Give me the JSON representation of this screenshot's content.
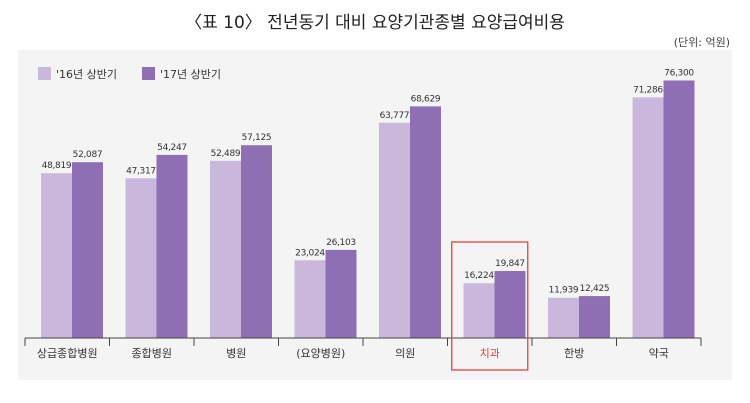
{
  "title": "〈표 10〉 전년동기 대비 요양기관종별 요양급여비용",
  "unit_label": "(단위: 억원)",
  "chart_data": {
    "type": "bar",
    "title": "〈표 10〉 전년동기 대비 요양기관종별 요양급여비용",
    "xlabel": "",
    "ylabel": "",
    "ylim": [
      0,
      80000
    ],
    "grid": false,
    "legend_position": "top-left",
    "categories": [
      "상급종합병원",
      "종합병원",
      "병원",
      "(요양병원)",
      "의원",
      "치과",
      "한방",
      "약국"
    ],
    "highlight_category": "치과",
    "series": [
      {
        "name": "'16년 상반기",
        "color": "#c9b7dc",
        "values": [
          48819,
          47317,
          52489,
          23024,
          63777,
          16224,
          11939,
          71286
        ],
        "labels": [
          "48,819",
          "47,317",
          "52,489",
          "23,024",
          "63,777",
          "16,224",
          "11,939",
          "71,286"
        ]
      },
      {
        "name": "'17년 상반기",
        "color": "#8f6fb4",
        "values": [
          52087,
          54247,
          57125,
          26103,
          68629,
          19847,
          12425,
          76300
        ],
        "labels": [
          "52,087",
          "54,247",
          "57,125",
          "26,103",
          "68,629",
          "19,847",
          "12,425",
          "76,300"
        ]
      }
    ]
  },
  "colors": {
    "highlight": "#e8413a",
    "axis": "#444444"
  }
}
